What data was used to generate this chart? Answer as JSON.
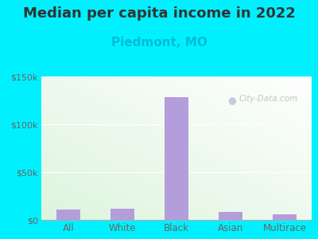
{
  "title": "Median per capita income in 2022",
  "subtitle": "Piedmont, MO",
  "categories": [
    "All",
    "White",
    "Black",
    "Asian",
    "Multirace"
  ],
  "values": [
    10500,
    11500,
    128000,
    8500,
    5500
  ],
  "bar_color": "#b39ddb",
  "title_fontsize": 13,
  "subtitle_fontsize": 11,
  "subtitle_color": "#00bcd4",
  "title_color": "#333333",
  "tick_color": "#666666",
  "background_outer": "#00f0ff",
  "ylim": [
    0,
    150000
  ],
  "yticks": [
    0,
    50000,
    100000,
    150000
  ],
  "ytick_labels": [
    "$0",
    "$50k",
    "$100k",
    "$150k"
  ],
  "watermark": "City-Data.com",
  "bar_width": 0.45
}
